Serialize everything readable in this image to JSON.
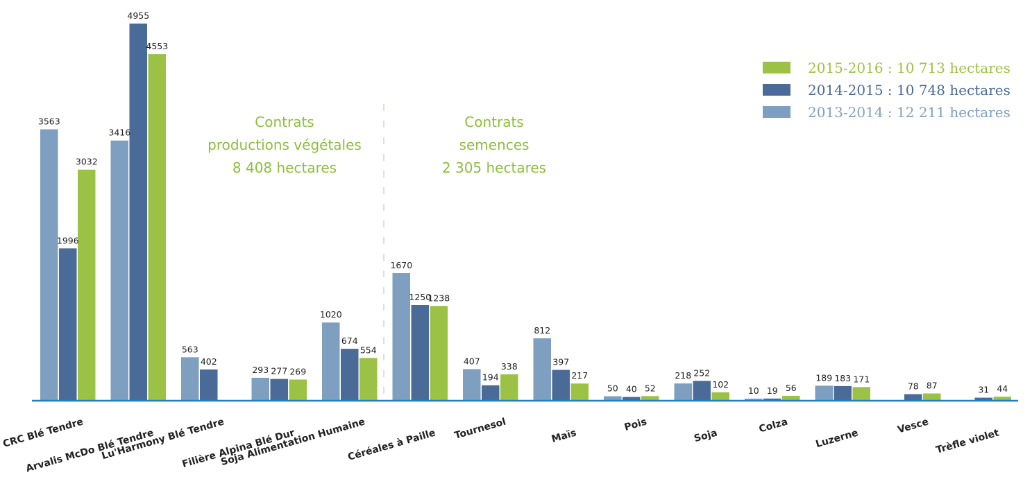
{
  "chart_data": {
    "type": "bar",
    "categories": [
      "CRC Blé Tendre",
      "Arvalis McDo Blé Tendre",
      "Lu'Harmony Blé Tendre",
      "Filière Alpina Blé Dur",
      "Soja Alimentation Humaine",
      "Céréales à Paille",
      "Tournesol",
      "Maïs",
      "Pois",
      "Soja",
      "Colza",
      "Luzerne",
      "Vesce",
      "Trèfle violet"
    ],
    "series": [
      {
        "name": "2013-2014 : 12 211 hectares",
        "color": "#7f9fc0",
        "values": [
          3563,
          3416,
          563,
          293,
          1020,
          1670,
          407,
          812,
          50,
          218,
          10,
          189,
          null,
          null
        ]
      },
      {
        "name": "2014-2015 : 10 748 hectares",
        "color": "#4a6b97",
        "values": [
          1996,
          4955,
          402,
          277,
          674,
          1250,
          194,
          397,
          40,
          252,
          19,
          183,
          78,
          31
        ]
      },
      {
        "name": "2015-2016 : 10 713 hectares",
        "color": "#9cc245",
        "values": [
          3032,
          4553,
          null,
          269,
          554,
          1238,
          338,
          217,
          52,
          102,
          56,
          171,
          87,
          44
        ]
      }
    ],
    "ylim": [
      0,
      4955
    ],
    "grid": false,
    "legend_position": "top-right",
    "axis_color": "#1f7fc4",
    "annotations": [
      {
        "lines": [
          "Contrats",
          "productions végétales",
          "8 408 hectares"
        ],
        "color": "#8dbf3a"
      },
      {
        "lines": [
          "Contrats",
          "semences",
          "2 305 hectares"
        ],
        "color": "#8dbf3a"
      }
    ]
  }
}
